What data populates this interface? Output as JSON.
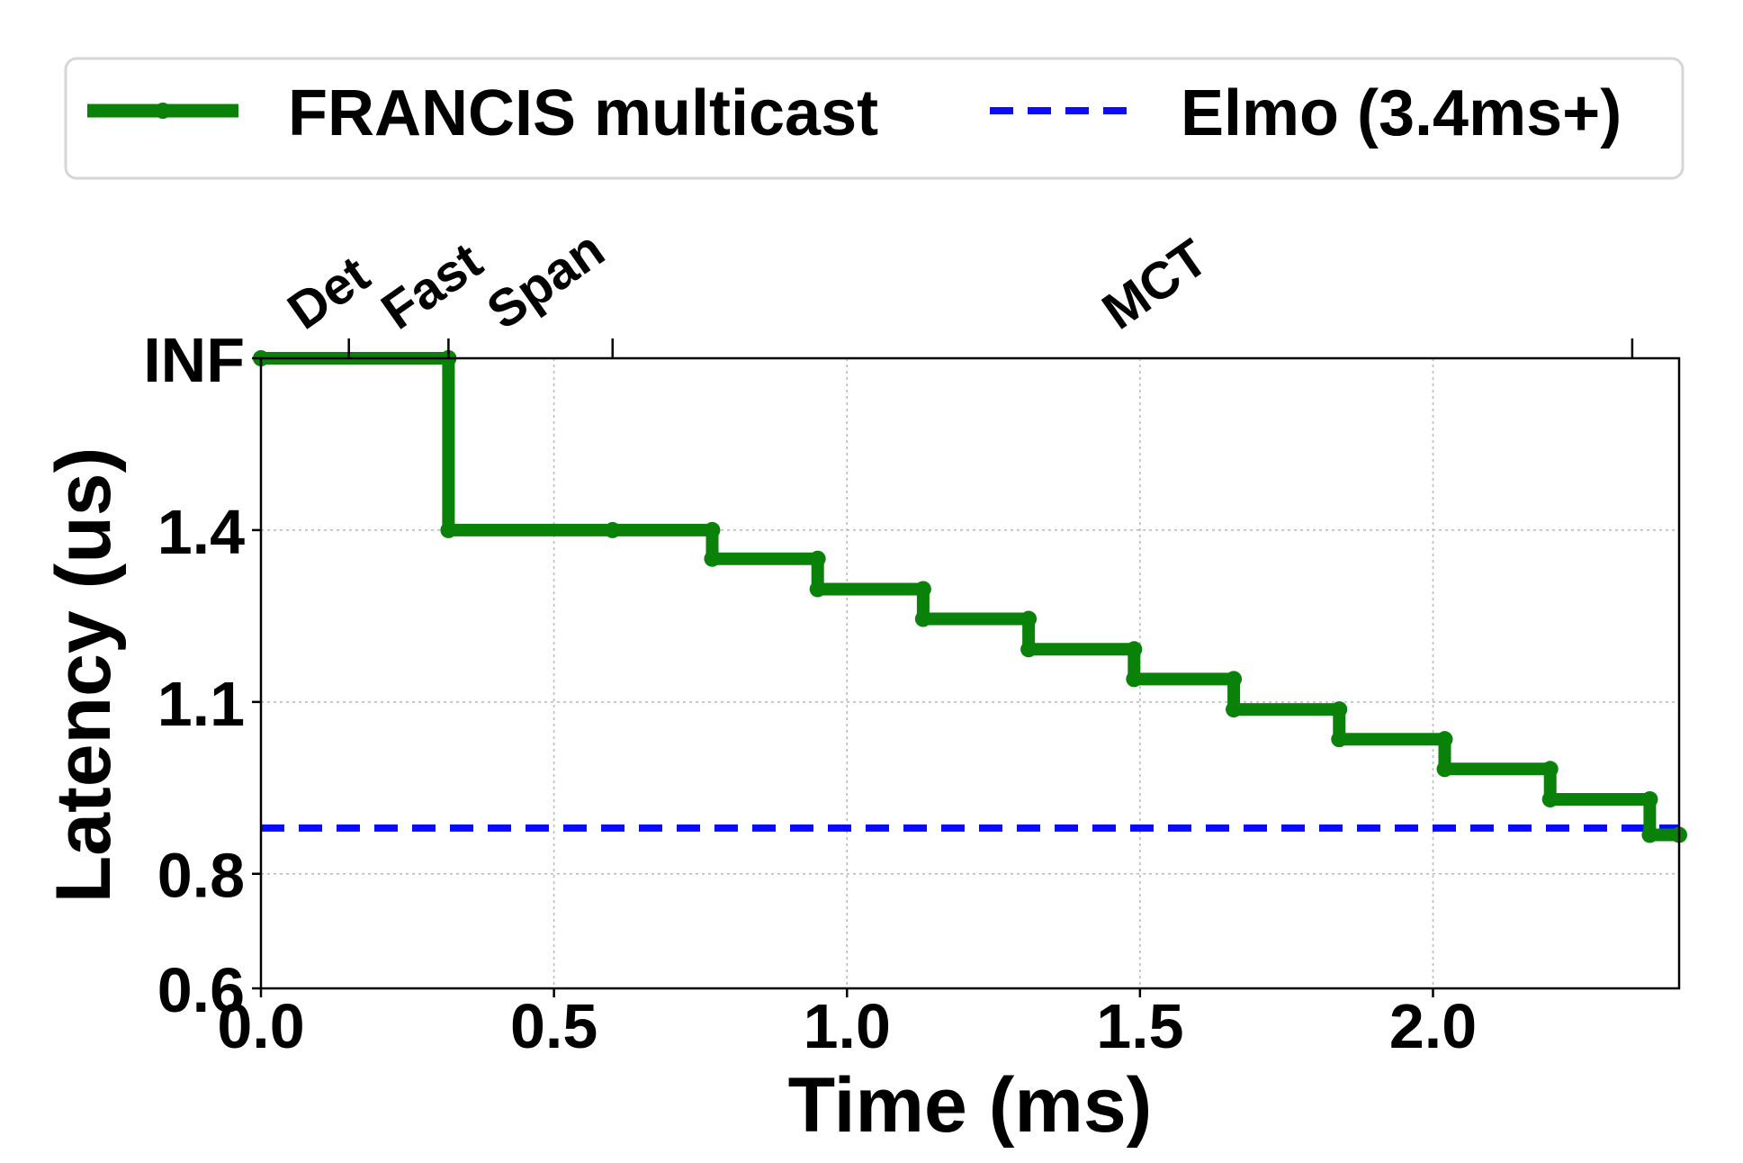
{
  "chart_data": {
    "type": "line",
    "xlabel": "Time (ms)",
    "ylabel": "Latency (us)",
    "xlim": [
      0.0,
      2.42
    ],
    "ylim": [
      0.6,
      1.7
    ],
    "x_ticks": [
      {
        "value": 0.0,
        "label": "0.0"
      },
      {
        "value": 0.5,
        "label": "0.5"
      },
      {
        "value": 1.0,
        "label": "1.0"
      },
      {
        "value": 1.5,
        "label": "1.5"
      },
      {
        "value": 2.0,
        "label": "2.0"
      }
    ],
    "y_ticks": [
      {
        "value": 0.6,
        "label": "0.6"
      },
      {
        "value": 0.8,
        "label": "0.8"
      },
      {
        "value": 1.1,
        "label": "1.1"
      },
      {
        "value": 1.4,
        "label": "1.4"
      },
      {
        "value": 1.7,
        "label": "INF"
      }
    ],
    "top_axis": {
      "ticks": [
        0.15,
        0.32,
        0.6,
        2.34
      ],
      "labels": [
        {
          "text": "Det",
          "x": 0.08
        },
        {
          "text": "Fast",
          "x": 0.24
        },
        {
          "text": "Span",
          "x": 0.42
        },
        {
          "text": "MCT",
          "x": 1.47
        }
      ]
    },
    "grid": true,
    "legend_position": "top",
    "series": [
      {
        "name": "FRANCIS multicast",
        "color": "#0a820a",
        "style": "step-solid",
        "points": [
          {
            "x": 0.0,
            "y": 1.7
          },
          {
            "x": 0.32,
            "y": 1.7
          },
          {
            "x": 0.32,
            "y": 1.4
          },
          {
            "x": 0.6,
            "y": 1.4
          },
          {
            "x": 0.77,
            "y": 1.4
          },
          {
            "x": 0.77,
            "y": 1.35
          },
          {
            "x": 0.95,
            "y": 1.35
          },
          {
            "x": 0.95,
            "y": 1.297
          },
          {
            "x": 1.13,
            "y": 1.297
          },
          {
            "x": 1.13,
            "y": 1.245
          },
          {
            "x": 1.31,
            "y": 1.245
          },
          {
            "x": 1.31,
            "y": 1.192
          },
          {
            "x": 1.49,
            "y": 1.192
          },
          {
            "x": 1.49,
            "y": 1.14
          },
          {
            "x": 1.66,
            "y": 1.14
          },
          {
            "x": 1.66,
            "y": 1.087
          },
          {
            "x": 1.84,
            "y": 1.087
          },
          {
            "x": 1.84,
            "y": 1.035
          },
          {
            "x": 2.02,
            "y": 1.035
          },
          {
            "x": 2.02,
            "y": 0.983
          },
          {
            "x": 2.2,
            "y": 0.983
          },
          {
            "x": 2.2,
            "y": 0.93
          },
          {
            "x": 2.37,
            "y": 0.93
          },
          {
            "x": 2.37,
            "y": 0.868
          },
          {
            "x": 2.42,
            "y": 0.868
          }
        ]
      },
      {
        "name": "Elmo (3.4ms+)",
        "color": "#0a0aff",
        "style": "dashed",
        "y": 0.88
      }
    ]
  }
}
